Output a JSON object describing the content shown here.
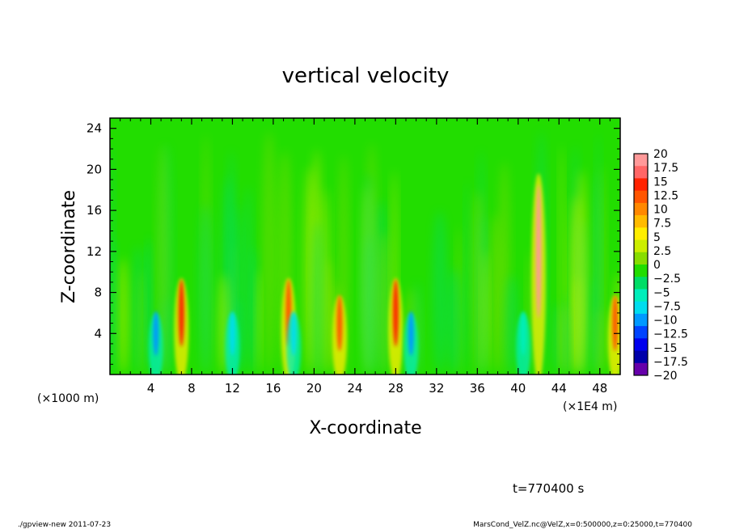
{
  "chart_data": {
    "type": "heatmap",
    "title": "vertical velocity",
    "xlabel": "X-coordinate",
    "ylabel": "Z-coordinate",
    "x_unit": "(×1000 m)",
    "x_unit_right": "(×1E4 m)",
    "xlim": [
      0,
      50
    ],
    "ylim": [
      0,
      25
    ],
    "x_ticks": [
      "4",
      "8",
      "12",
      "16",
      "20",
      "24",
      "28",
      "32",
      "36",
      "40",
      "44",
      "48"
    ],
    "x_tick_values": [
      4,
      8,
      12,
      16,
      20,
      24,
      28,
      32,
      36,
      40,
      44,
      48
    ],
    "y_ticks": [
      "4",
      "8",
      "12",
      "16",
      "20",
      "24"
    ],
    "y_tick_values": [
      4,
      8,
      12,
      16,
      20,
      24
    ],
    "background_color": "#22dd00",
    "colorbar": {
      "labels": [
        "20",
        "17.5",
        "15",
        "12.5",
        "10",
        "7.5",
        "5",
        "2.5",
        "0",
        "−2.5",
        "−5",
        "−7.5",
        "−10",
        "−12.5",
        "−15",
        "−17.5",
        "−20"
      ],
      "colors": [
        "#ff9999",
        "#ff6666",
        "#ff2200",
        "#ff5500",
        "#ff8800",
        "#ffbb00",
        "#ffee00",
        "#ccee00",
        "#88dd00",
        "#22dd00",
        "#00dd66",
        "#00eebb",
        "#00ddee",
        "#0099ff",
        "#0044ff",
        "#0000ee",
        "#0000aa",
        "#6600aa"
      ]
    },
    "features": [
      {
        "x": 42,
        "z": 12,
        "value": 20
      },
      {
        "x": 7,
        "z": 6,
        "value": 15
      },
      {
        "x": 28,
        "z": 6,
        "value": 15
      },
      {
        "x": 17.5,
        "z": 6,
        "value": 12.5
      },
      {
        "x": 22.5,
        "z": 5,
        "value": 12.5
      },
      {
        "x": 49.5,
        "z": 5,
        "value": 12.5
      },
      {
        "x": 4.5,
        "z": 4,
        "value": -12.5
      },
      {
        "x": 12,
        "z": 4,
        "value": -10
      },
      {
        "x": 18,
        "z": 4,
        "value": -10
      },
      {
        "x": 29.5,
        "z": 4,
        "value": -12.5
      },
      {
        "x": 40.5,
        "z": 4,
        "value": -7.5
      }
    ]
  },
  "annotations": {
    "time": "t=770400 s",
    "footer_left": "./gpview-new   2011-07-23",
    "footer_right": "MarsCond_VelZ.nc@VelZ,x=0:500000,z=0:25000,t=770400"
  }
}
